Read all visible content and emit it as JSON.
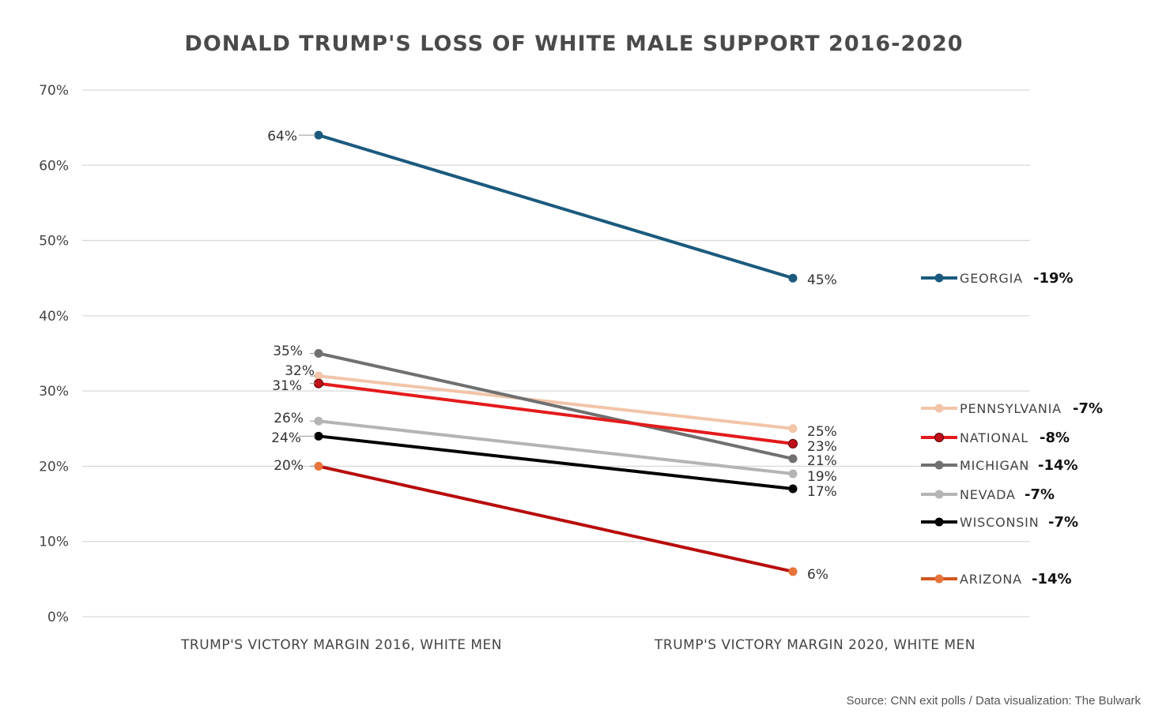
{
  "chart_data": {
    "type": "line",
    "title": "DONALD TRUMP'S LOSS OF WHITE MALE SUPPORT 2016-2020",
    "categories": [
      "TRUMP'S VICTORY MARGIN 2016, WHITE MEN",
      "TRUMP'S VICTORY MARGIN 2020, WHITE MEN"
    ],
    "ylim": [
      0,
      70
    ],
    "y_ticks": [
      "0%",
      "10%",
      "20%",
      "30%",
      "40%",
      "50%",
      "60%",
      "70%"
    ],
    "grid": true,
    "legend_position": "right",
    "series": [
      {
        "name": "GEORGIA",
        "values": [
          64,
          45
        ],
        "labels": [
          "64%",
          "45%"
        ],
        "change": "-19%",
        "color": "#1b5a7e"
      },
      {
        "name": "PENNSYLVANIA",
        "values": [
          32,
          25
        ],
        "labels": [
          "32%",
          "25%"
        ],
        "change": "-7%",
        "color": "#f2c4a8"
      },
      {
        "name": "NATIONAL",
        "values": [
          31,
          23
        ],
        "labels": [
          "31%",
          "23%"
        ],
        "change": "-8%",
        "color": "#e41a1c",
        "marker_color": "#c0101a"
      },
      {
        "name": "MICHIGAN",
        "values": [
          35,
          21
        ],
        "labels": [
          "35%",
          "21%"
        ],
        "change": "-14%",
        "color": "#707070"
      },
      {
        "name": "NEVADA",
        "values": [
          26,
          19
        ],
        "labels": [
          "26%",
          "19%"
        ],
        "change": "-7%",
        "color": "#b4b4b4"
      },
      {
        "name": "WISCONSIN",
        "values": [
          24,
          17
        ],
        "labels": [
          "24%",
          "17%"
        ],
        "change": "-7%",
        "color": "#000000"
      },
      {
        "name": "ARIZONA",
        "values": [
          20,
          6
        ],
        "labels": [
          "20%",
          "6%"
        ],
        "change": "-14%",
        "color": "#b80c0c",
        "marker_color": "#e8743a",
        "legend_color": "#d2561e"
      }
    ]
  },
  "source": "Source: CNN exit polls / Data visualization: The Bulwark"
}
